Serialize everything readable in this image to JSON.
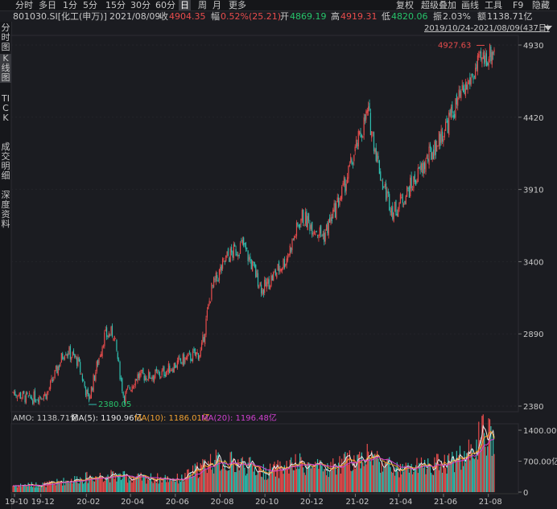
{
  "toolbar": {
    "period_tabs": [
      "分时",
      "多日",
      "1分",
      "5分",
      "15分",
      "30分",
      "60分",
      "日",
      "周",
      "月",
      "更多"
    ],
    "active_tab": "日",
    "right_items": [
      "复权",
      "超级叠加",
      "画线",
      "工具",
      "F9",
      "隐藏"
    ]
  },
  "info": {
    "code": "801030.SI[化工(申万)]",
    "date": "2021/08/09",
    "close_label": "收",
    "close": "4904.35",
    "change_label": "幅",
    "change": "0.52%(25.21)",
    "open_label": "开",
    "open": "4869.19",
    "high_label": "高",
    "high": "4919.31",
    "low_label": "低",
    "low": "4820.06",
    "amp_label": "振",
    "amp": "2.03%",
    "amount_label": "额",
    "amount": "1138.71亿",
    "range": "2019/10/24-2021/08/09(437日)"
  },
  "sidebar": [
    "分时图",
    "K线图",
    "TICK",
    "成交明细",
    "深度资料"
  ],
  "sidebar_active": "K线图",
  "price_axis": [
    "4930",
    "4420",
    "3910",
    "3400",
    "2890",
    "2380"
  ],
  "max_label": "4927.63",
  "min_label": "2380.05",
  "volume_legend": {
    "amo": "AMO: 1138.71亿",
    "ma5": "MA(5): 1190.96亿",
    "ma10": "MA(10): 1186.01亿",
    "ma20": "MA(20): 1196.48亿"
  },
  "volume_axis": [
    "1400.00亿",
    "700.00亿",
    "0"
  ],
  "x_axis": [
    "19-10",
    "19-12",
    "20-02",
    "20-04",
    "20-06",
    "20-08",
    "20-10",
    "20-12",
    "21-02",
    "21-04",
    "21-06",
    "21-08"
  ],
  "colors": {
    "up": "#e84c4c",
    "down": "#2fbfb0",
    "ma5": "#e8e8e8",
    "ma10": "#f0a030",
    "ma20": "#d040d0",
    "axis": "#c8c8c8"
  },
  "chart_data": {
    "type": "candlestick",
    "ylim": [
      2380,
      4930
    ],
    "volume_ylim": [
      0,
      1400
    ],
    "x_ticks": [
      "19-10",
      "19-12",
      "20-02",
      "20-04",
      "20-06",
      "20-08",
      "20-10",
      "20-12",
      "21-02",
      "21-04",
      "21-06",
      "21-08"
    ],
    "trend_close": [
      [
        "2019-10-24",
        2480
      ],
      [
        "2019-11-15",
        2430
      ],
      [
        "2019-12-10",
        2470
      ],
      [
        "2020-01-03",
        2780
      ],
      [
        "2020-01-20",
        2700
      ],
      [
        "2020-02-04",
        2420
      ],
      [
        "2020-02-25",
        2870
      ],
      [
        "2020-03-09",
        2900
      ],
      [
        "2020-03-23",
        2440
      ],
      [
        "2020-04-10",
        2590
      ],
      [
        "2020-05-10",
        2600
      ],
      [
        "2020-06-10",
        2700
      ],
      [
        "2020-07-06",
        2760
      ],
      [
        "2020-07-20",
        3200
      ],
      [
        "2020-08-10",
        3430
      ],
      [
        "2020-09-01",
        3520
      ],
      [
        "2020-09-28",
        3200
      ],
      [
        "2020-10-30",
        3420
      ],
      [
        "2020-11-20",
        3720
      ],
      [
        "2020-12-20",
        3580
      ],
      [
        "2021-01-15",
        3900
      ],
      [
        "2021-02-18",
        4460
      ],
      [
        "2021-03-10",
        3950
      ],
      [
        "2021-03-25",
        3750
      ],
      [
        "2021-04-20",
        3950
      ],
      [
        "2021-05-25",
        4250
      ],
      [
        "2021-06-20",
        4520
      ],
      [
        "2021-07-20",
        4800
      ],
      [
        "2021-08-09",
        4904
      ]
    ],
    "volume_trend": [
      [
        "2019-10-24",
        150
      ],
      [
        "2019-12-10",
        180
      ],
      [
        "2020-01-20",
        300
      ],
      [
        "2020-02-25",
        380
      ],
      [
        "2020-04-10",
        320
      ],
      [
        "2020-06-10",
        300
      ],
      [
        "2020-07-20",
        700
      ],
      [
        "2020-08-30",
        650
      ],
      [
        "2020-10-01",
        450
      ],
      [
        "2020-11-20",
        650
      ],
      [
        "2020-12-20",
        500
      ],
      [
        "2021-02-18",
        850
      ],
      [
        "2021-04-01",
        480
      ],
      [
        "2021-05-25",
        650
      ],
      [
        "2021-07-01",
        800
      ],
      [
        "2021-07-25",
        1300
      ],
      [
        "2021-08-09",
        1150
      ]
    ],
    "max": 4927.63,
    "min": 2380.05
  }
}
